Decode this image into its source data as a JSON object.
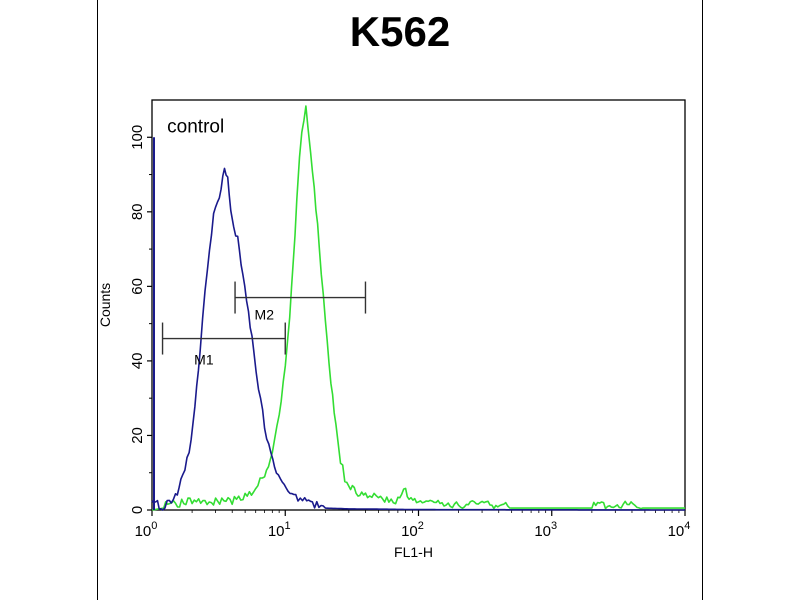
{
  "chart_data": {
    "type": "line",
    "title": "K562",
    "xlabel": "FL1-H",
    "ylabel": "Counts",
    "xscale": "log",
    "xlim": [
      1,
      10000
    ],
    "ylim": [
      0,
      110
    ],
    "grid": false,
    "x_ticks": [
      {
        "value": 1,
        "base": "10",
        "exp": "0"
      },
      {
        "value": 10,
        "base": "10",
        "exp": "1"
      },
      {
        "value": 100,
        "base": "10",
        "exp": "2"
      },
      {
        "value": 1000,
        "base": "10",
        "exp": "3"
      },
      {
        "value": 10000,
        "base": "10",
        "exp": "4"
      }
    ],
    "y_ticks": [
      0,
      20,
      40,
      60,
      80,
      100
    ],
    "annotations": [
      {
        "text": "control",
        "x": 1.3,
        "y": 100
      }
    ],
    "markers": [
      {
        "label": "M1",
        "x_start": 1.2,
        "x_end": 10,
        "y": 46
      },
      {
        "label": "M2",
        "x_start": 4.2,
        "x_end": 40,
        "y": 57
      }
    ],
    "series": [
      {
        "name": "control",
        "color": "#1a1a8c",
        "points": [
          [
            1.0,
            2
          ],
          [
            1.1,
            1
          ],
          [
            1.2,
            0
          ],
          [
            1.3,
            1
          ],
          [
            1.5,
            3
          ],
          [
            1.7,
            8
          ],
          [
            1.9,
            15
          ],
          [
            2.1,
            28
          ],
          [
            2.3,
            42
          ],
          [
            2.5,
            58
          ],
          [
            2.7,
            70
          ],
          [
            2.9,
            78
          ],
          [
            3.1,
            82
          ],
          [
            3.3,
            86
          ],
          [
            3.5,
            92
          ],
          [
            3.7,
            88
          ],
          [
            3.9,
            80
          ],
          [
            4.1,
            76
          ],
          [
            4.4,
            72
          ],
          [
            4.8,
            62
          ],
          [
            5.3,
            52
          ],
          [
            5.8,
            42
          ],
          [
            6.3,
            32
          ],
          [
            7.0,
            22
          ],
          [
            7.8,
            14
          ],
          [
            8.6,
            9
          ],
          [
            9.5,
            6
          ],
          [
            10.5,
            4
          ],
          [
            12,
            3
          ],
          [
            14,
            2
          ],
          [
            16,
            1
          ],
          [
            20,
            0.5
          ],
          [
            30,
            0.3
          ],
          [
            60,
            0.2
          ],
          [
            100,
            0.1
          ],
          [
            10000,
            0
          ]
        ]
      },
      {
        "name": "",
        "color": "#33dd33",
        "points": [
          [
            1.0,
            0
          ],
          [
            1.5,
            1
          ],
          [
            2.0,
            2
          ],
          [
            2.5,
            1
          ],
          [
            3.0,
            2
          ],
          [
            4.0,
            2
          ],
          [
            5.0,
            3
          ],
          [
            6.0,
            5
          ],
          [
            7.0,
            9
          ],
          [
            8.0,
            15
          ],
          [
            9.0,
            25
          ],
          [
            10.0,
            38
          ],
          [
            10.8,
            52
          ],
          [
            11.5,
            66
          ],
          [
            12.2,
            82
          ],
          [
            12.8,
            95
          ],
          [
            13.3,
            100
          ],
          [
            13.8,
            104
          ],
          [
            14.3,
            107
          ],
          [
            14.8,
            102
          ],
          [
            15.5,
            96
          ],
          [
            16.5,
            86
          ],
          [
            18,
            70
          ],
          [
            20,
            50
          ],
          [
            22,
            34
          ],
          [
            24,
            22
          ],
          [
            26,
            13
          ],
          [
            28,
            8
          ],
          [
            30,
            6
          ],
          [
            34,
            4
          ],
          [
            40,
            3
          ],
          [
            50,
            3
          ],
          [
            60,
            2
          ],
          [
            70,
            2
          ],
          [
            80,
            5
          ],
          [
            85,
            2
          ],
          [
            100,
            2
          ],
          [
            150,
            1
          ],
          [
            200,
            1
          ],
          [
            300,
            1
          ],
          [
            500,
            0.5
          ],
          [
            1000,
            0.5
          ],
          [
            2000,
            0.5
          ],
          [
            3000,
            1
          ],
          [
            5000,
            0.5
          ],
          [
            10000,
            0.5
          ]
        ]
      }
    ]
  }
}
